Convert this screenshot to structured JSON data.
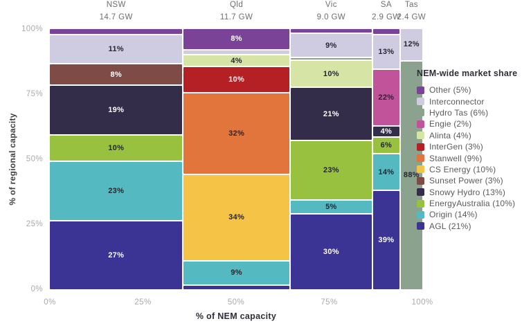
{
  "chart_data": {
    "type": "bar",
    "subtype": "marimekko-mosaic",
    "x_axis": {
      "label": "% of NEM capacity",
      "ticks": [
        "0%",
        "25%",
        "50%",
        "75%",
        "100%"
      ],
      "range": [
        0,
        100
      ]
    },
    "y_axis": {
      "label": "% of regional capacity",
      "ticks": [
        "100%",
        "75%",
        "50%",
        "25%",
        "0%"
      ],
      "range": [
        0,
        100
      ]
    },
    "grid": false,
    "legend_position": "right",
    "columns": [
      {
        "region": "NSW",
        "capacity_label": "14.7 GW",
        "gw": 14.7,
        "segments": [
          {
            "company": "Other",
            "value": 2,
            "label": null
          },
          {
            "company": "Interconnector",
            "value": 11,
            "label": "11%"
          },
          {
            "company": "Sunset Power",
            "value": 8,
            "label": "8%"
          },
          {
            "company": "Snowy Hydro",
            "value": 19,
            "label": "19%"
          },
          {
            "company": "EnergyAustralia",
            "value": 10,
            "label": "10%"
          },
          {
            "company": "Origin",
            "value": 23,
            "label": "23%"
          },
          {
            "company": "AGL",
            "value": 27,
            "label": "27%"
          }
        ]
      },
      {
        "region": "Qld",
        "capacity_label": "11.7 GW",
        "gw": 11.7,
        "segments": [
          {
            "company": "Other",
            "value": 8,
            "label": "8%"
          },
          {
            "company": "Interconnector",
            "value": 1.5,
            "label": null
          },
          {
            "company": "Alinta",
            "value": 4,
            "label": "4%"
          },
          {
            "company": "InterGen",
            "value": 10,
            "label": "10%"
          },
          {
            "company": "Stanwell",
            "value": 32,
            "label": "32%"
          },
          {
            "company": "CS Energy",
            "value": 34,
            "label": "34%"
          },
          {
            "company": "Origin",
            "value": 9,
            "label": "9%"
          },
          {
            "company": "AGL",
            "value": 1.5,
            "label": null
          }
        ]
      },
      {
        "region": "Vic",
        "capacity_label": "9.0 GW",
        "gw": 9.0,
        "segments": [
          {
            "company": "Other",
            "value": 1.5,
            "label": null
          },
          {
            "company": "Interconnector",
            "value": 9,
            "label": "9%"
          },
          {
            "company": "Hydro Tas",
            "value": 0.7,
            "label": null
          },
          {
            "company": "Alinta",
            "value": 10,
            "label": "10%"
          },
          {
            "company": "Snowy Hydro",
            "value": 21,
            "label": "21%"
          },
          {
            "company": "EnergyAustralia",
            "value": 23,
            "label": "23%"
          },
          {
            "company": "Origin",
            "value": 5,
            "label": "5%"
          },
          {
            "company": "AGL",
            "value": 30,
            "label": "30%"
          }
        ]
      },
      {
        "region": "SA",
        "capacity_label": "2.9 GW",
        "gw": 2.9,
        "segments": [
          {
            "company": "Other",
            "value": 2,
            "label": null
          },
          {
            "company": "Interconnector",
            "value": 13,
            "label": "13%"
          },
          {
            "company": "Engie",
            "value": 22,
            "label": "22%"
          },
          {
            "company": "Snowy Hydro",
            "value": 4,
            "label": "4%"
          },
          {
            "company": "EnergyAustralia",
            "value": 6,
            "label": "6%"
          },
          {
            "company": "Origin",
            "value": 14,
            "label": "14%"
          },
          {
            "company": "AGL",
            "value": 39,
            "label": "39%"
          }
        ]
      },
      {
        "region": "Tas",
        "capacity_label": "2.4 GW",
        "gw": 2.4,
        "segments": [
          {
            "company": "Interconnector",
            "value": 12,
            "label": "12%"
          },
          {
            "company": "Hydro Tas",
            "value": 88,
            "label": "88%"
          }
        ]
      }
    ],
    "legend": {
      "title": "NEM-wide market share",
      "items": [
        {
          "company": "Other",
          "label": "Other (5%)"
        },
        {
          "company": "Interconnector",
          "label": "Interconnector"
        },
        {
          "company": "Hydro Tas",
          "label": "Hydro Tas (6%)"
        },
        {
          "company": "Engie",
          "label": "Engie (2%)"
        },
        {
          "company": "Alinta",
          "label": "Alinta (4%)"
        },
        {
          "company": "InterGen",
          "label": "InterGen (3%)"
        },
        {
          "company": "Stanwell",
          "label": "Stanwell (9%)"
        },
        {
          "company": "CS Energy",
          "label": "CS Energy (10%)"
        },
        {
          "company": "Sunset Power",
          "label": "Sunset Power (3%)"
        },
        {
          "company": "Snowy Hydro",
          "label": "Snowy Hydro (13%)"
        },
        {
          "company": "EnergyAustralia",
          "label": "EnergyAustralia (10%)"
        },
        {
          "company": "Origin",
          "label": "Origin (14%)"
        },
        {
          "company": "AGL",
          "label": "AGL (21%)"
        }
      ]
    },
    "colors": {
      "Other": "#7B4397",
      "Interconnector": "#CFCCE2",
      "Hydro Tas": "#8AA28E",
      "Engie": "#C1539B",
      "Alinta": "#D6E5A5",
      "InterGen": "#B52025",
      "Stanwell": "#E2753B",
      "CS Energy": "#F5C447",
      "Sunset Power": "#7F4B47",
      "Snowy Hydro": "#332D4A",
      "EnergyAustralia": "#97C13F",
      "Origin": "#54B9C1",
      "AGL": "#3B3494"
    },
    "label_text_dark": "#26262e",
    "label_text_light": "#ffffff"
  }
}
